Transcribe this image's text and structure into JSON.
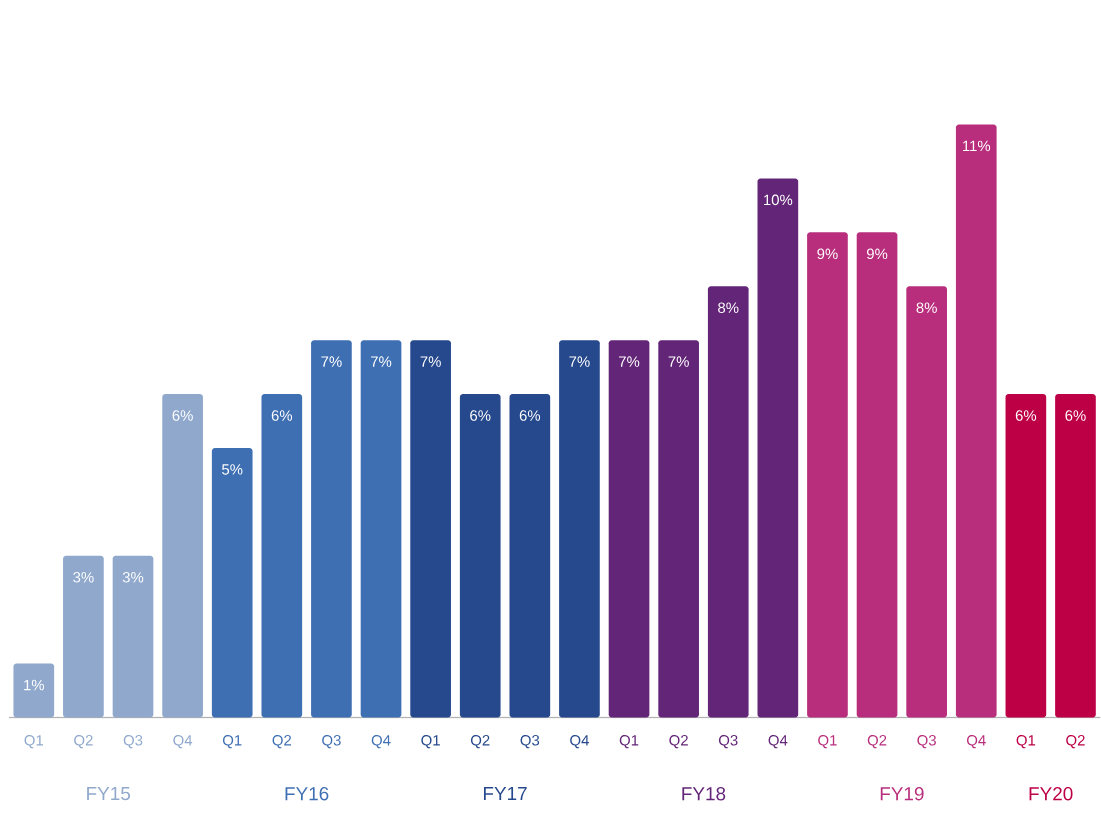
{
  "chart_data": {
    "type": "bar",
    "categories": [
      "Q1",
      "Q2",
      "Q3",
      "Q4",
      "Q1",
      "Q2",
      "Q3",
      "Q4",
      "Q1",
      "Q2",
      "Q3",
      "Q4",
      "Q1",
      "Q2",
      "Q3",
      "Q4",
      "Q1",
      "Q2",
      "Q3",
      "Q4",
      "Q1",
      "Q2"
    ],
    "values": [
      1,
      3,
      3,
      6,
      5,
      6,
      7,
      7,
      7,
      6,
      6,
      7,
      7,
      7,
      8,
      10,
      9,
      9,
      8,
      11,
      6,
      6
    ],
    "colors": [
      "#8fa8cc",
      "#8fa8cc",
      "#8fa8cc",
      "#8fa8cc",
      "#3f6fb3",
      "#3f6fb3",
      "#3f6fb3",
      "#3f6fb3",
      "#26488c",
      "#26488c",
      "#26488c",
      "#26488c",
      "#632577",
      "#632577",
      "#632577",
      "#632577",
      "#b82e7c",
      "#b82e7c",
      "#b82e7c",
      "#b82e7c",
      "#bd0046",
      "#bd0046"
    ],
    "value_labels": [
      "1%",
      "3%",
      "3%",
      "6%",
      "5%",
      "6%",
      "7%",
      "7%",
      "7%",
      "6%",
      "6%",
      "7%",
      "7%",
      "7%",
      "8%",
      "10%",
      "9%",
      "9%",
      "8%",
      "11%",
      "6%",
      "6%"
    ],
    "annotations": [
      "FY15",
      "FY16",
      "FY17",
      "FY18",
      "FY19",
      "FY20"
    ]
  }
}
